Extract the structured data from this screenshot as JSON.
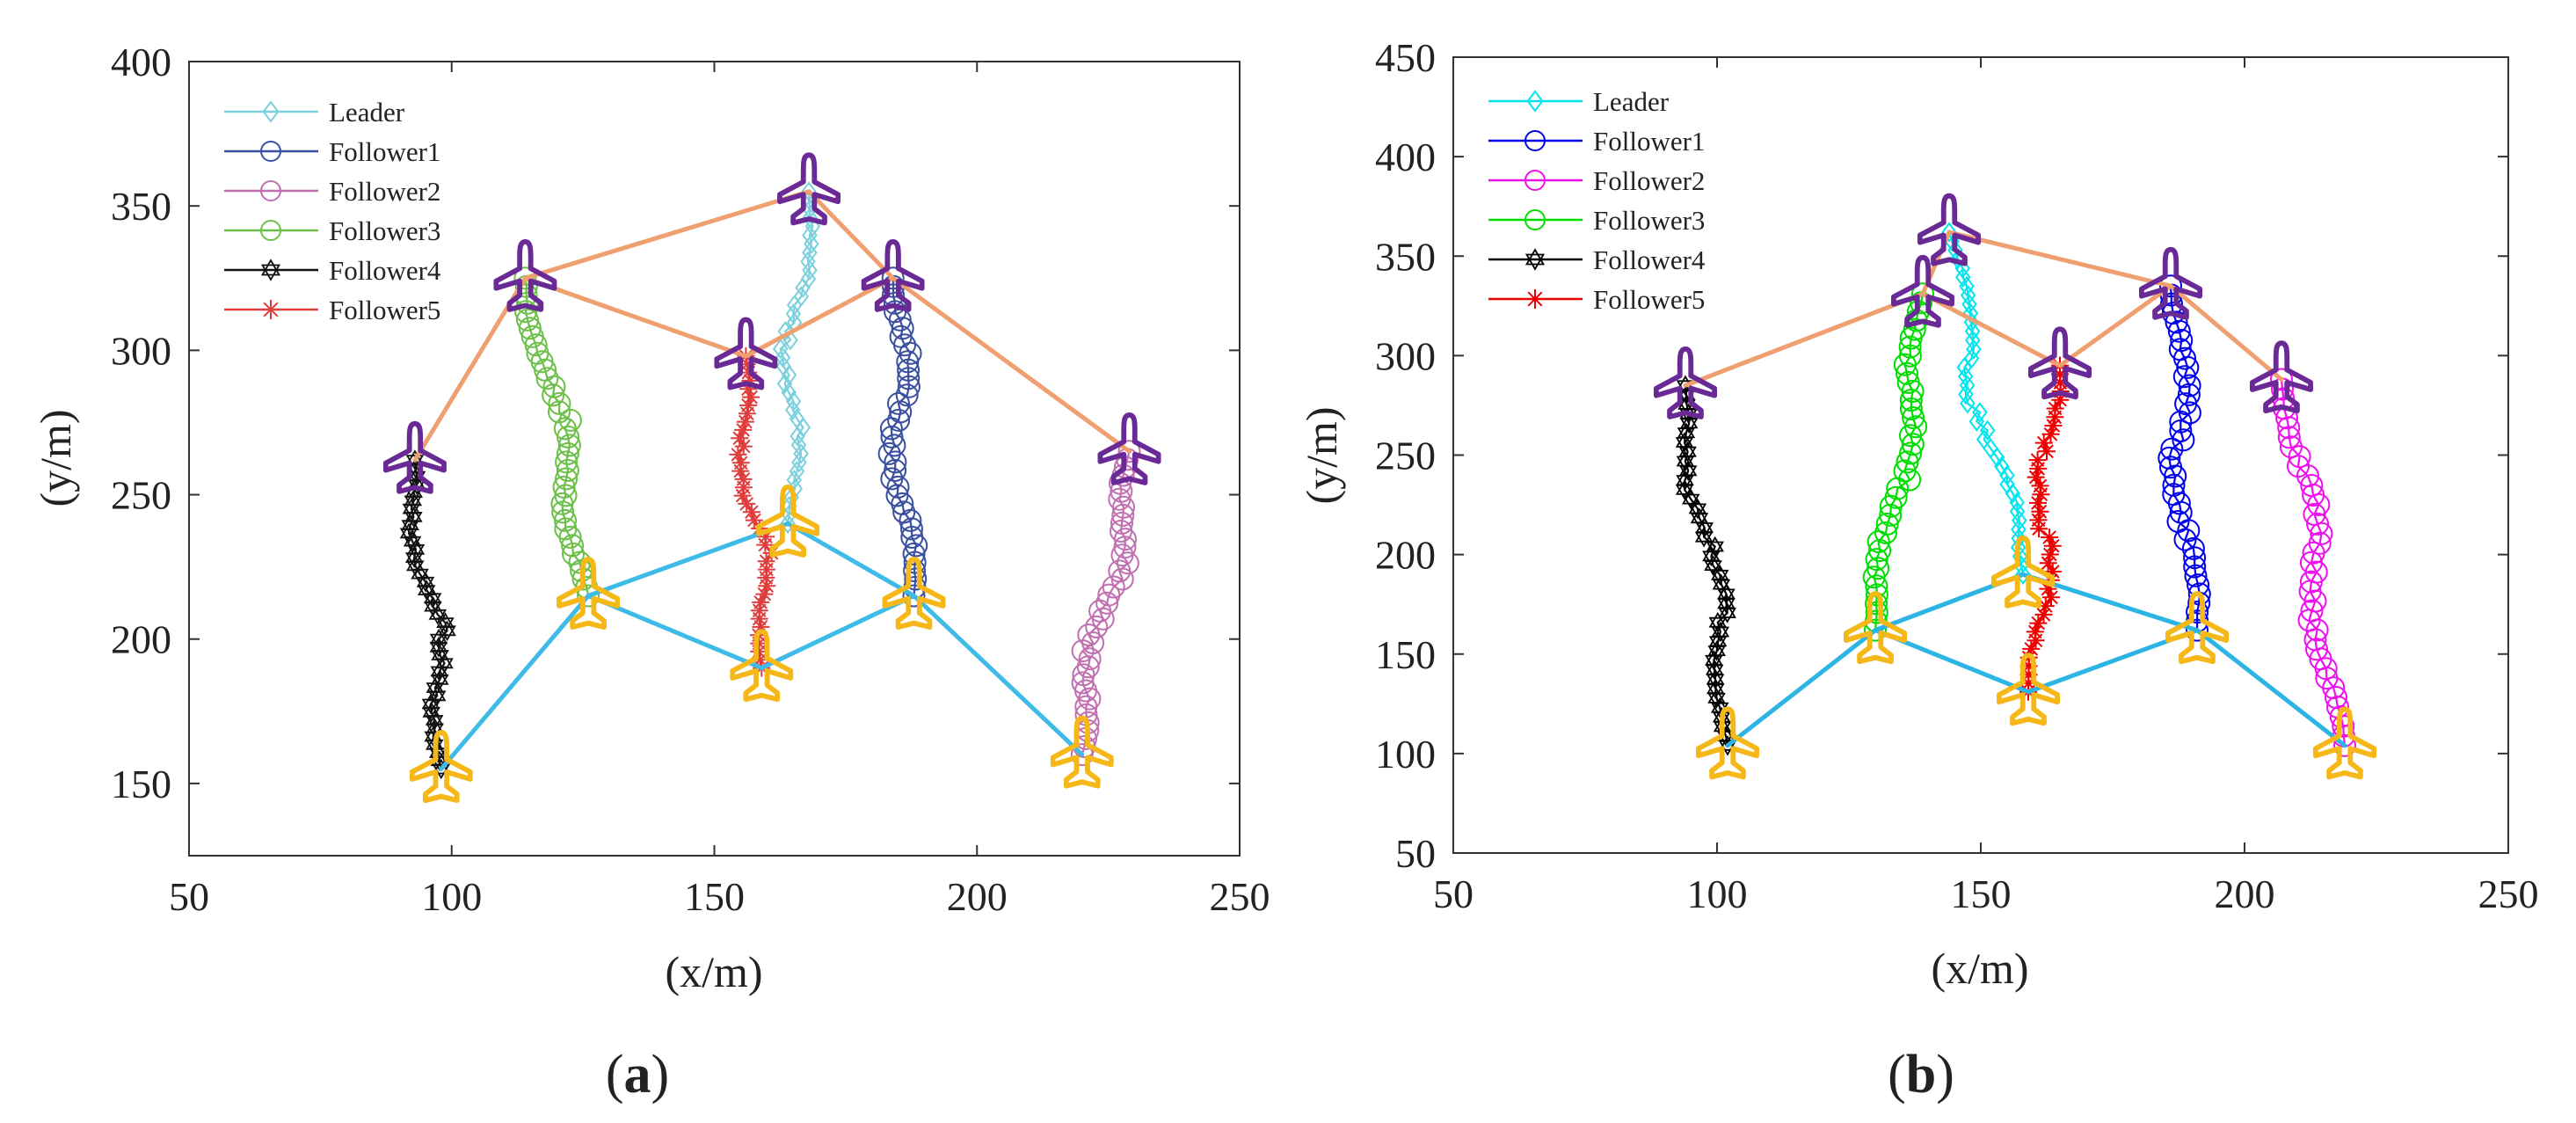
{
  "chart_data": [
    {
      "type": "line",
      "panel_label": "a",
      "xlabel": "(x/m)",
      "ylabel": "(y/m)",
      "xlim": [
        50,
        250
      ],
      "ylim": [
        125,
        400
      ],
      "xticks": [
        50,
        100,
        150,
        200,
        250
      ],
      "yticks": [
        150,
        200,
        250,
        300,
        350,
        400
      ],
      "legend_position": "top-left",
      "series": [
        {
          "name": "Leader",
          "marker": "diamond",
          "color": "#7ad0dc",
          "start": [
            164,
            240
          ],
          "end": [
            168,
            355
          ]
        },
        {
          "name": "Follower1",
          "marker": "circle",
          "color": "#3a4fa0",
          "start": [
            188,
            215
          ],
          "end": [
            184,
            325
          ]
        },
        {
          "name": "Follower2",
          "marker": "circle",
          "color": "#c070b0",
          "start": [
            220,
            160
          ],
          "end": [
            229,
            265
          ]
        },
        {
          "name": "Follower3",
          "marker": "circle",
          "color": "#6cc048",
          "start": [
            126,
            215
          ],
          "end": [
            114,
            325
          ]
        },
        {
          "name": "Follower4",
          "marker": "hexagram",
          "color": "#111111",
          "start": [
            98,
            155
          ],
          "end": [
            93,
            262
          ]
        },
        {
          "name": "Follower5",
          "marker": "asterisk",
          "color": "#e03c3c",
          "start": [
            159,
            190
          ],
          "end": [
            156,
            298
          ]
        }
      ],
      "start_formation_edges": [
        [
          "Follower4",
          "Follower3"
        ],
        [
          "Follower3",
          "Leader"
        ],
        [
          "Follower3",
          "Follower5"
        ],
        [
          "Leader",
          "Follower1"
        ],
        [
          "Follower5",
          "Follower1"
        ],
        [
          "Follower1",
          "Follower2"
        ]
      ],
      "end_formation_edges": [
        [
          "Follower4",
          "Follower3"
        ],
        [
          "Follower3",
          "Leader"
        ],
        [
          "Follower3",
          "Follower5"
        ],
        [
          "Follower5",
          "Follower1"
        ],
        [
          "Leader",
          "Follower1"
        ],
        [
          "Follower1",
          "Follower2"
        ]
      ],
      "start_formation_color": "#3fbbe8",
      "end_formation_color": "#f0a070",
      "start_aircraft_color": "#f5b818",
      "end_aircraft_color": "#6a2a96"
    },
    {
      "type": "line",
      "panel_label": "b",
      "xlabel": "(x/m)",
      "ylabel": "(y/m)",
      "xlim": [
        50,
        250
      ],
      "ylim": [
        50,
        450
      ],
      "xticks": [
        50,
        100,
        150,
        200,
        250
      ],
      "yticks": [
        50,
        100,
        150,
        200,
        250,
        300,
        350,
        400,
        450
      ],
      "legend_position": "top-left",
      "series": [
        {
          "name": "Leader",
          "marker": "diamond",
          "color": "#00e5ee",
          "start": [
            158,
            190
          ],
          "end": [
            144,
            362
          ]
        },
        {
          "name": "Follower1",
          "marker": "circle",
          "color": "#0000ee",
          "start": [
            191,
            162
          ],
          "end": [
            186,
            335
          ]
        },
        {
          "name": "Follower2",
          "marker": "circle",
          "color": "#ee10ee",
          "start": [
            219,
            104
          ],
          "end": [
            207,
            288
          ]
        },
        {
          "name": "Follower3",
          "marker": "circle",
          "color": "#00dd00",
          "start": [
            130,
            162
          ],
          "end": [
            139,
            331
          ]
        },
        {
          "name": "Follower4",
          "marker": "hexagram",
          "color": "#000000",
          "start": [
            102,
            104
          ],
          "end": [
            94,
            285
          ]
        },
        {
          "name": "Follower5",
          "marker": "asterisk",
          "color": "#ee0000",
          "start": [
            159,
            131
          ],
          "end": [
            165,
            295
          ]
        }
      ],
      "start_formation_edges": [
        [
          "Follower4",
          "Follower3"
        ],
        [
          "Follower3",
          "Leader"
        ],
        [
          "Follower3",
          "Follower5"
        ],
        [
          "Leader",
          "Follower1"
        ],
        [
          "Follower5",
          "Follower1"
        ],
        [
          "Follower1",
          "Follower2"
        ]
      ],
      "end_formation_edges": [
        [
          "Follower4",
          "Follower3"
        ],
        [
          "Follower3",
          "Leader"
        ],
        [
          "Follower3",
          "Follower5"
        ],
        [
          "Follower5",
          "Follower1"
        ],
        [
          "Leader",
          "Follower1"
        ],
        [
          "Follower1",
          "Follower2"
        ]
      ],
      "start_formation_color": "#2cb4e4",
      "end_formation_color": "#f0a070",
      "start_aircraft_color": "#f5b818",
      "end_aircraft_color": "#6a2a96"
    }
  ]
}
